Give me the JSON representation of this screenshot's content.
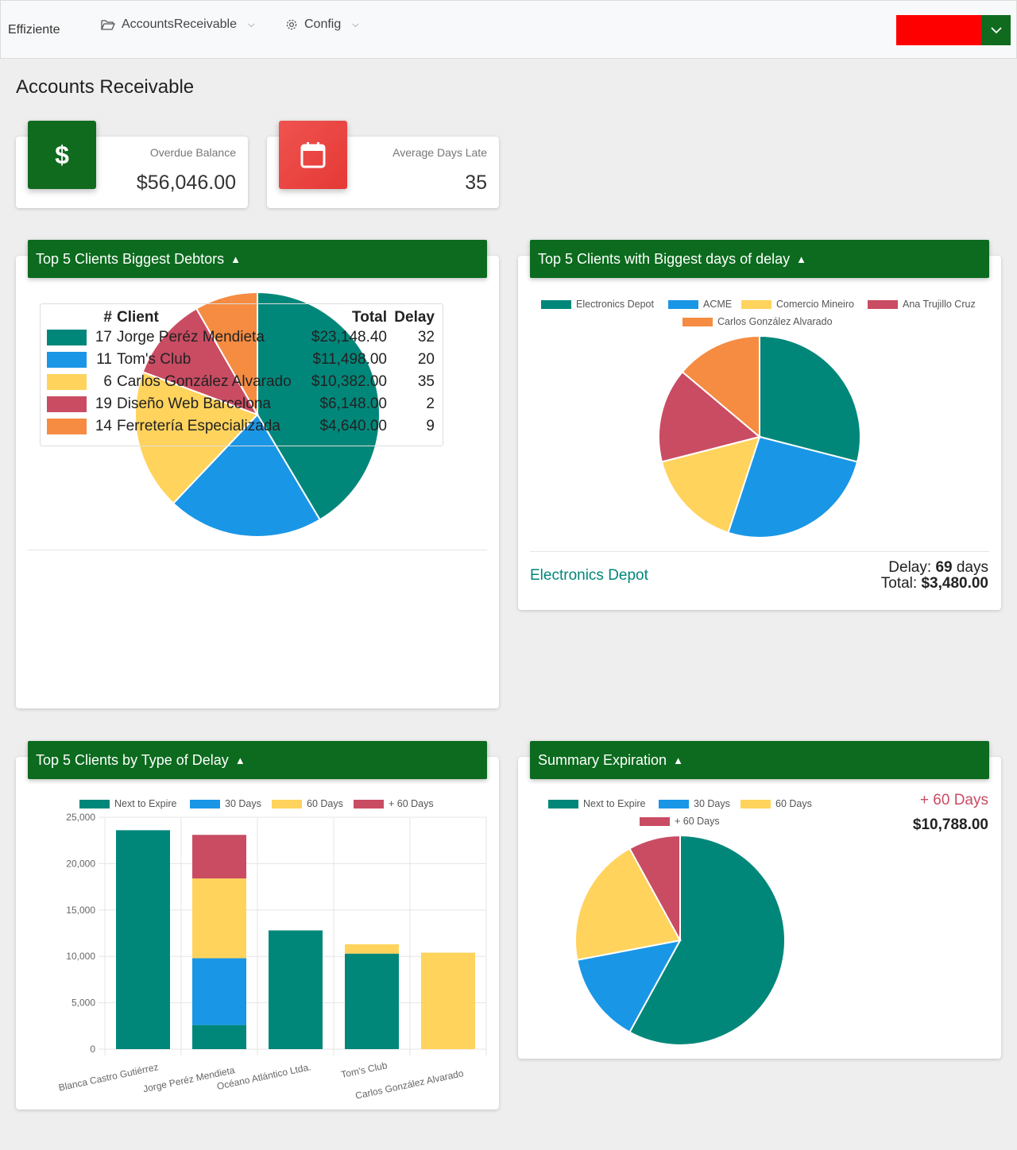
{
  "nav": {
    "brand": "Effiziente",
    "items": [
      {
        "label": "AccountsReceivable",
        "icon": "folder-open-icon"
      },
      {
        "label": "Config",
        "icon": "gear-icon"
      }
    ],
    "user_color": "#ff0000"
  },
  "page": {
    "title": "Accounts Receivable"
  },
  "stats": {
    "overdue": {
      "label": "Overdue Balance",
      "value": "$56,046.00",
      "icon": "dollar-icon",
      "color": "#106b1f"
    },
    "days": {
      "label": "Average Days Late",
      "value": "35",
      "icon": "calendar-icon",
      "color": "#e53935"
    }
  },
  "colors": [
    "#00877a",
    "#1a96e6",
    "#ffd35c",
    "#c94c63",
    "#f58c42"
  ],
  "panels": {
    "debtors": {
      "title": "Top 5 Clients Biggest Debtors",
      "table": {
        "headers": [
          "#",
          "Client",
          "Total",
          "Delay"
        ],
        "rows": [
          {
            "num": "17",
            "client": "Jorge Peréz Mendieta",
            "total": "$23,148.40",
            "delay": "32"
          },
          {
            "num": "11",
            "client": "Tom's Club",
            "total": "$11,498.00",
            "delay": "20"
          },
          {
            "num": "6",
            "client": "Carlos González Alvarado",
            "total": "$10,382.00",
            "delay": "35"
          },
          {
            "num": "19",
            "client": "Diseño Web Barcelona",
            "total": "$6,148.00",
            "delay": "2"
          },
          {
            "num": "14",
            "client": "Ferretería Especializada",
            "total": "$4,640.00",
            "delay": "9"
          }
        ]
      }
    },
    "delay": {
      "title": "Top 5 Clients with Biggest days of delay",
      "selected_client": "Electronics Depot",
      "delay_label": "Delay:",
      "delay_value": "69",
      "delay_unit": "days",
      "total_label": "Total:",
      "total_value": "$3,480.00"
    },
    "by_type": {
      "title": "Top 5 Clients by Type of Delay"
    },
    "summary": {
      "title": "Summary Expiration",
      "selected_label": "+ 60 Days",
      "selected_value": "$10,788.00"
    }
  },
  "chart_data": [
    {
      "type": "pie",
      "categories": [
        "Jorge Peréz Mendieta",
        "Tom's Club",
        "Carlos González Alvarado",
        "Diseño Web Barcelona",
        "Ferretería Especializada"
      ],
      "values": [
        23148.4,
        11498.0,
        10382.0,
        6148.0,
        4640.0
      ]
    },
    {
      "type": "pie",
      "categories": [
        "Electronics Depot",
        "ACME",
        "Comercio Mineiro",
        "Ana Trujillo Cruz",
        "Carlos González Alvarado"
      ],
      "values": [
        69,
        62,
        38,
        36,
        33
      ],
      "legend": "top"
    },
    {
      "type": "bar",
      "stacked": true,
      "categories": [
        "Blanca Castro Gutiérrez",
        "Jorge Peréz Mendieta",
        "Océano Atlántico Ltda.",
        "Tom's Club",
        "Carlos González Alvarado"
      ],
      "series": [
        {
          "name": "Next to Expire",
          "values": [
            23600,
            2600,
            12800,
            10300,
            0
          ]
        },
        {
          "name": "30 Days",
          "values": [
            0,
            7200,
            0,
            0,
            0
          ]
        },
        {
          "name": "60 Days",
          "values": [
            0,
            8600,
            0,
            1000,
            10400
          ]
        },
        {
          "name": "+ 60 Days",
          "values": [
            0,
            4700,
            0,
            0,
            0
          ]
        }
      ],
      "ylim": [
        0,
        25000
      ],
      "yticks": [
        "0",
        "5,000",
        "10,000",
        "15,000",
        "20,000",
        "25,000"
      ],
      "grid": true,
      "legend": "top"
    },
    {
      "type": "pie",
      "categories": [
        "Next to Expire",
        "30 Days",
        "60 Days",
        "+ 60 Days"
      ],
      "values": [
        58,
        14,
        20,
        8
      ],
      "legend": "top"
    }
  ]
}
